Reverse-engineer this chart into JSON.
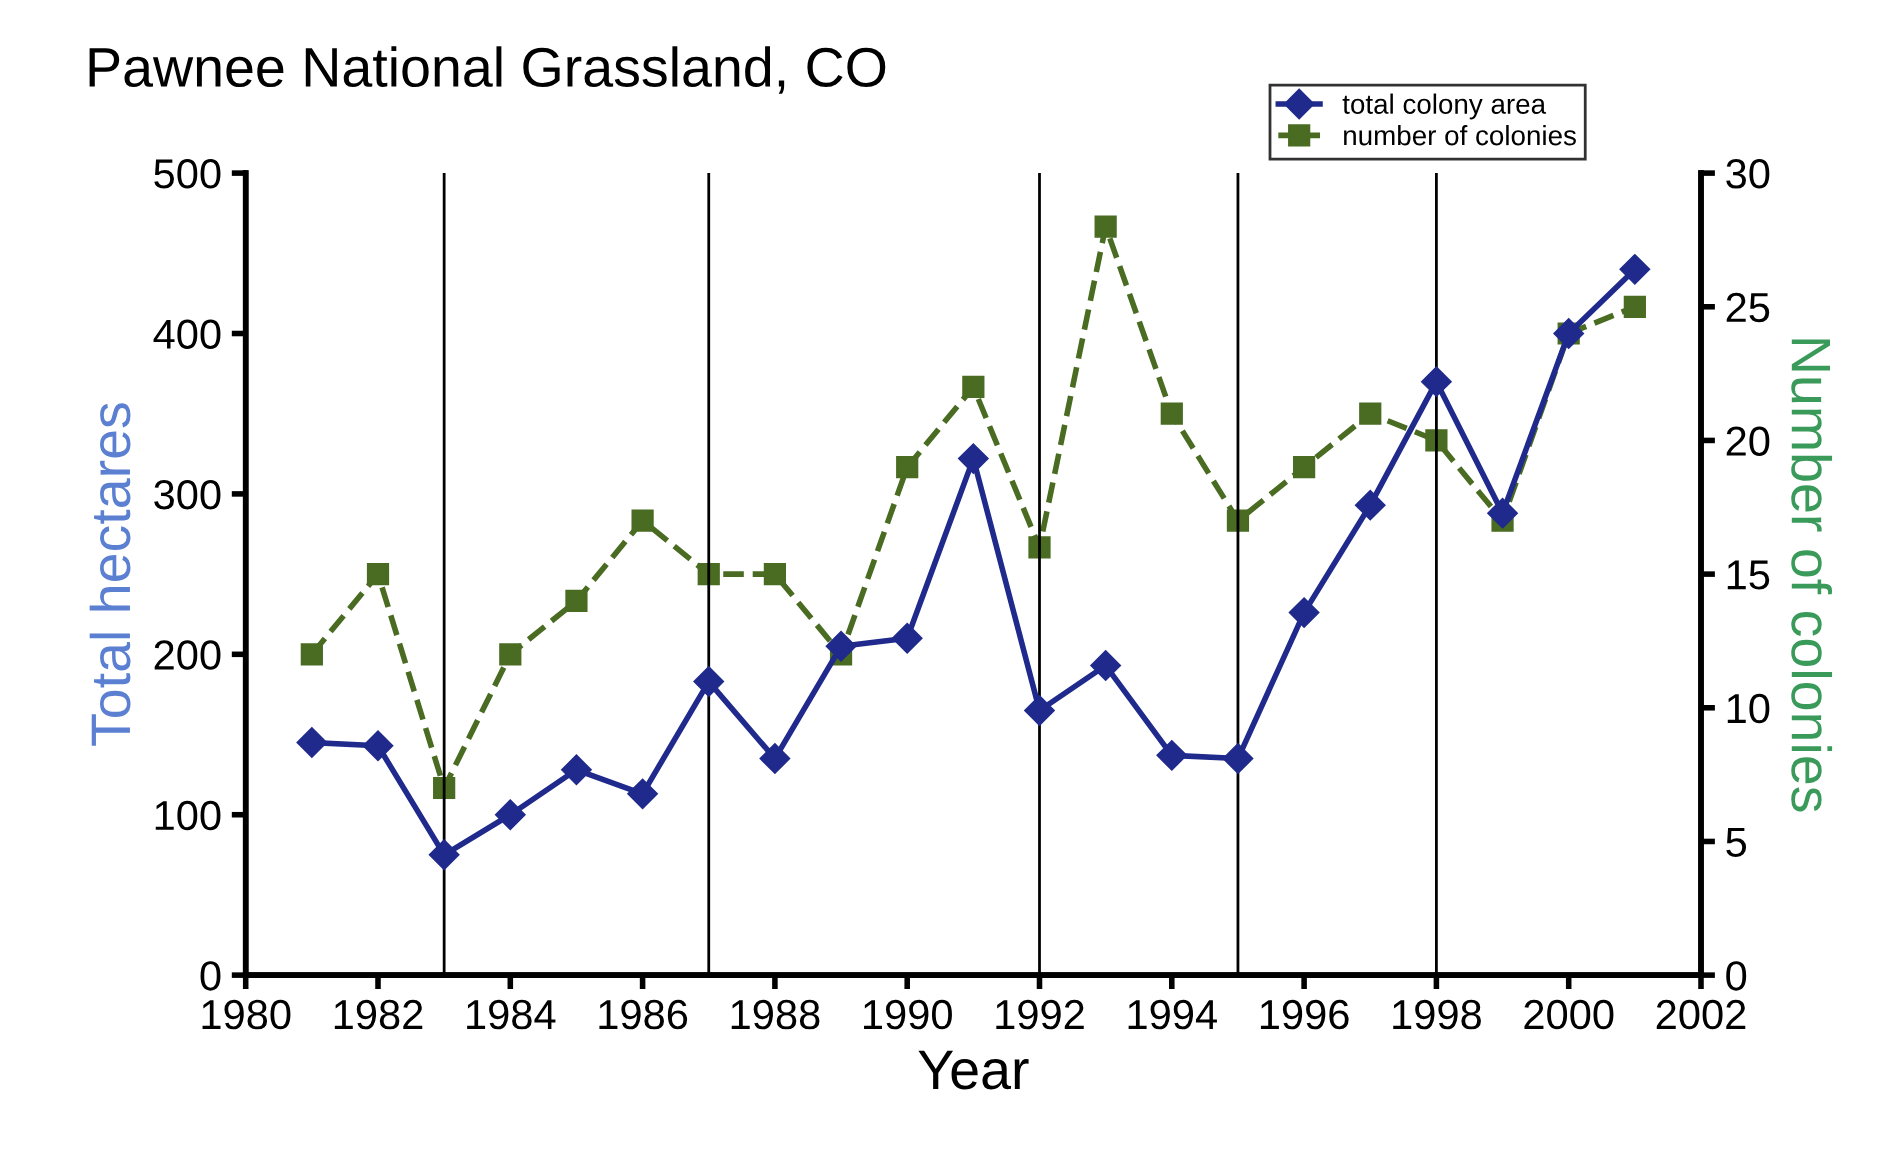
{
  "chart_data": {
    "type": "line",
    "title": "Pawnee National Grassland, CO",
    "xlabel": "Year",
    "ylabel": "Total hectares",
    "y2label": "Number of colonies",
    "x": [
      1981,
      1982,
      1983,
      1984,
      1985,
      1986,
      1987,
      1988,
      1989,
      1990,
      1991,
      1992,
      1993,
      1994,
      1995,
      1996,
      1997,
      1998,
      1999,
      2000,
      2001
    ],
    "series": [
      {
        "name": "total colony area",
        "color": "#1f2a8c",
        "marker": "diamond",
        "line_style": "solid",
        "values": [
          145,
          143,
          75,
          100,
          128,
          113,
          183,
          135,
          205,
          210,
          322,
          165,
          193,
          137,
          135,
          226,
          293,
          370,
          288,
          400,
          440
        ]
      },
      {
        "name": "number of colonies",
        "color": "#4a6b22",
        "marker": "square",
        "line_style": "dashed",
        "axis": "y2",
        "values": [
          12,
          15,
          7,
          12,
          14,
          17,
          15,
          15,
          12,
          19,
          22,
          16,
          28,
          21,
          17,
          19,
          21,
          20,
          17,
          24,
          25
        ]
      }
    ],
    "xlim": [
      1980,
      2002
    ],
    "xticks": [
      1980,
      1982,
      1984,
      1986,
      1988,
      1990,
      1992,
      1994,
      1996,
      1998,
      2000,
      2002
    ],
    "ylim": [
      0,
      500
    ],
    "yticks": [
      0,
      100,
      200,
      300,
      400,
      500
    ],
    "y2lim": [
      0,
      30
    ],
    "y2ticks": [
      0,
      5,
      10,
      15,
      20,
      25,
      30
    ],
    "ref_lines": [
      {
        "axis": "x",
        "value": 1983,
        "color": "#000000"
      },
      {
        "axis": "x",
        "value": 1987,
        "color": "#000000"
      },
      {
        "axis": "x",
        "value": 1992,
        "color": "#000000"
      },
      {
        "axis": "x",
        "value": 1995,
        "color": "#000000"
      },
      {
        "axis": "x",
        "value": 1998,
        "color": "#000000"
      }
    ],
    "grid": false,
    "legend": "top right"
  }
}
